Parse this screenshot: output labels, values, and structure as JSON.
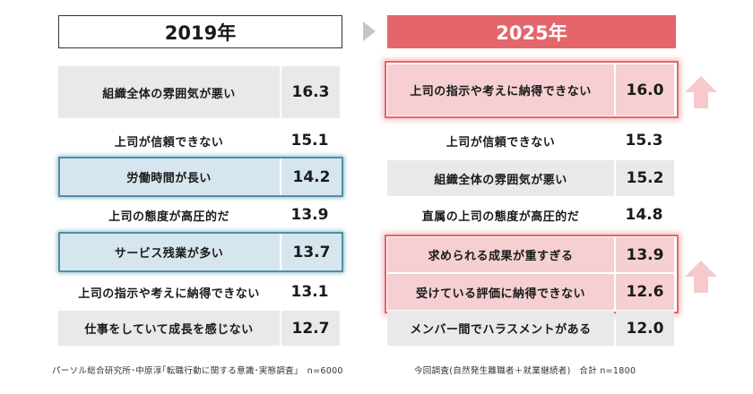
{
  "chart_data": {
    "type": "table",
    "panels": [
      {
        "year": "2019年",
        "rows": [
          {
            "label": "組織全体の雰囲気が悪い",
            "value": 16.3
          },
          {
            "label": "上司が信頼できない",
            "value": 15.1
          },
          {
            "label": "労働時間が長い",
            "value": 14.2
          },
          {
            "label": "上司の態度が高圧的だ",
            "value": 13.9
          },
          {
            "label": "サービス残業が多い",
            "value": 13.7
          },
          {
            "label": "上司の指示や考えに納得できない",
            "value": 13.1
          },
          {
            "label": "仕事をしていて成長を感じない",
            "value": 12.7
          }
        ],
        "footnote": "パーソル総合研究所･中原淳｢転職行動に関する意識･実態調査｣　n=6000"
      },
      {
        "year": "2025年",
        "rows": [
          {
            "label": "上司の指示や考えに納得できない",
            "value": 16.0
          },
          {
            "label": "上司が信頼できない",
            "value": 15.3
          },
          {
            "label": "組織全体の雰囲気が悪い",
            "value": 15.2
          },
          {
            "label": "直属の上司の態度が高圧的だ",
            "value": 14.8
          },
          {
            "label": "求められる成果が重すぎる",
            "value": 13.9
          },
          {
            "label": "受けている評価に納得できない",
            "value": 12.6
          },
          {
            "label": "メンバー間でハラスメントがある",
            "value": 12.0
          }
        ],
        "footnote": "今回調査(自然発生離職者＋就業継続者)　合計 n=1800"
      }
    ]
  },
  "colors": {
    "accent_red": "#e4666b",
    "highlight_pink": "#f5cfd2",
    "highlight_blue": "#4f8fa7",
    "row_gray": "#e9e9e9",
    "arrow_pink": "#f6c9cc"
  },
  "icons": [
    "arrow-right-icon",
    "up-arrow-icon"
  ]
}
